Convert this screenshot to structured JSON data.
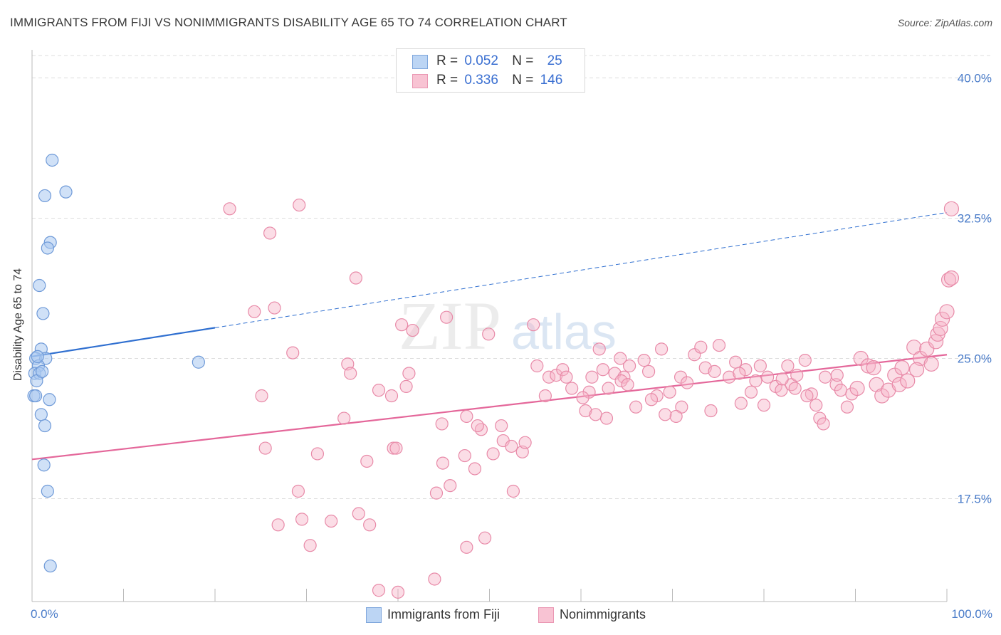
{
  "title": "IMMIGRANTS FROM FIJI VS NONIMMIGRANTS DISABILITY AGE 65 TO 74 CORRELATION CHART",
  "source": "Source: ZipAtlas.com",
  "watermark": {
    "zip": "ZIP",
    "atlas": "atlas"
  },
  "colors": {
    "blue_fill": "#a9c8f0",
    "blue_stroke": "#6f9ad8",
    "blue_line": "#2f6fd0",
    "pink_fill": "#f6b3c8",
    "pink_stroke": "#e88aa8",
    "pink_line": "#e4679a",
    "tick_text": "#4a7cc9",
    "grid": "#dddddd"
  },
  "legend": {
    "series1": {
      "r_label": "R =",
      "r_value": "0.052",
      "n_label": "N =",
      "n_value": "25"
    },
    "series2": {
      "r_label": "R =",
      "r_value": "0.336",
      "n_label": "N =",
      "n_value": "146"
    }
  },
  "bottom_legend": {
    "series1": "Immigrants from Fiji",
    "series2": "Nonimmigrants"
  },
  "chart_data": {
    "type": "scatter",
    "title": "IMMIGRANTS FROM FIJI VS NONIMMIGRANTS DISABILITY AGE 65 TO 74 CORRELATION CHART",
    "xlabel": "",
    "ylabel": "Disability Age 65 to 74",
    "xlim": [
      0,
      100
    ],
    "ylim": [
      12.0,
      41.5
    ],
    "x_tick_labels": [
      "0.0%",
      "100.0%"
    ],
    "y_ticks": [
      17.5,
      25.0,
      32.5,
      40.0
    ],
    "y_tick_labels": [
      "17.5%",
      "25.0%",
      "32.5%",
      "40.0%"
    ],
    "grid": true,
    "series": [
      {
        "name": "Immigrants from Fiji",
        "points": [
          [
            2.2,
            35.6
          ],
          [
            3.7,
            33.9
          ],
          [
            1.4,
            33.7
          ],
          [
            2.0,
            31.2
          ],
          [
            1.7,
            30.9
          ],
          [
            0.8,
            28.9
          ],
          [
            1.2,
            27.4
          ],
          [
            1.0,
            25.5
          ],
          [
            0.4,
            25.0
          ],
          [
            1.5,
            25.0
          ],
          [
            0.7,
            24.6
          ],
          [
            0.3,
            24.2
          ],
          [
            0.8,
            24.2
          ],
          [
            0.5,
            23.8
          ],
          [
            0.2,
            23.0
          ],
          [
            0.4,
            23.0
          ],
          [
            1.9,
            22.8
          ],
          [
            1.0,
            22.0
          ],
          [
            1.4,
            21.4
          ],
          [
            1.3,
            19.3
          ],
          [
            1.7,
            17.9
          ],
          [
            2.0,
            13.9
          ],
          [
            18.2,
            24.8
          ],
          [
            0.6,
            25.1
          ],
          [
            1.1,
            24.3
          ]
        ],
        "trend": {
          "x": [
            0,
            100
          ],
          "y": [
            25.1,
            32.8
          ],
          "solid_until_x": 20
        }
      },
      {
        "name": "Nonimmigrants",
        "points": [
          [
            29.2,
            33.2
          ],
          [
            21.6,
            33.0
          ],
          [
            26.0,
            31.7
          ],
          [
            35.4,
            29.3
          ],
          [
            26.5,
            27.7
          ],
          [
            24.3,
            27.5
          ],
          [
            45.3,
            27.2
          ],
          [
            40.4,
            26.8
          ],
          [
            54.8,
            26.8
          ],
          [
            41.6,
            26.5
          ],
          [
            49.9,
            26.3
          ],
          [
            28.5,
            25.3
          ],
          [
            34.5,
            24.7
          ],
          [
            34.8,
            24.2
          ],
          [
            41.2,
            24.2
          ],
          [
            37.9,
            23.3
          ],
          [
            40.9,
            23.5
          ],
          [
            25.1,
            23.0
          ],
          [
            39.3,
            23.0
          ],
          [
            47.5,
            21.9
          ],
          [
            34.1,
            21.8
          ],
          [
            44.8,
            21.5
          ],
          [
            49.1,
            21.2
          ],
          [
            48.7,
            21.4
          ],
          [
            51.3,
            21.4
          ],
          [
            25.5,
            20.2
          ],
          [
            39.5,
            20.2
          ],
          [
            39.8,
            20.2
          ],
          [
            31.2,
            19.9
          ],
          [
            50.4,
            19.9
          ],
          [
            51.5,
            20.6
          ],
          [
            52.4,
            20.3
          ],
          [
            53.6,
            20.0
          ],
          [
            53.9,
            20.5
          ],
          [
            36.6,
            19.5
          ],
          [
            44.9,
            19.4
          ],
          [
            47.3,
            19.8
          ],
          [
            48.4,
            19.1
          ],
          [
            29.1,
            17.9
          ],
          [
            44.2,
            17.8
          ],
          [
            45.7,
            18.2
          ],
          [
            52.6,
            17.9
          ],
          [
            35.7,
            16.7
          ],
          [
            26.9,
            16.1
          ],
          [
            29.5,
            16.4
          ],
          [
            32.7,
            16.3
          ],
          [
            36.9,
            16.1
          ],
          [
            30.4,
            15.0
          ],
          [
            47.5,
            14.9
          ],
          [
            49.5,
            15.4
          ],
          [
            44.0,
            13.2
          ],
          [
            37.9,
            12.6
          ],
          [
            40.0,
            12.5
          ],
          [
            60.5,
            22.2
          ],
          [
            56.5,
            24.0
          ],
          [
            55.2,
            24.6
          ],
          [
            57.3,
            24.1
          ],
          [
            58.0,
            24.4
          ],
          [
            56.1,
            23.0
          ],
          [
            59.0,
            23.4
          ],
          [
            60.9,
            23.2
          ],
          [
            61.2,
            24.0
          ],
          [
            62.0,
            25.5
          ],
          [
            62.4,
            24.4
          ],
          [
            63.0,
            23.4
          ],
          [
            63.7,
            24.2
          ],
          [
            64.7,
            24.0
          ],
          [
            64.4,
            23.8
          ],
          [
            65.3,
            24.6
          ],
          [
            66.9,
            24.9
          ],
          [
            67.4,
            24.3
          ],
          [
            68.3,
            23.0
          ],
          [
            68.8,
            25.5
          ],
          [
            69.7,
            23.2
          ],
          [
            70.9,
            24.0
          ],
          [
            71.6,
            23.7
          ],
          [
            72.4,
            25.2
          ],
          [
            73.1,
            25.6
          ],
          [
            73.6,
            24.5
          ],
          [
            74.6,
            24.3
          ],
          [
            75.1,
            25.7
          ],
          [
            76.2,
            24.0
          ],
          [
            76.9,
            24.8
          ],
          [
            77.5,
            22.6
          ],
          [
            78.0,
            24.4
          ],
          [
            78.6,
            23.2
          ],
          [
            80.4,
            24.0
          ],
          [
            80.0,
            22.5
          ],
          [
            81.3,
            23.5
          ],
          [
            81.9,
            23.3
          ],
          [
            82.6,
            24.6
          ],
          [
            83.0,
            23.6
          ],
          [
            83.6,
            24.1
          ],
          [
            84.5,
            24.9
          ],
          [
            85.2,
            23.1
          ],
          [
            85.7,
            22.5
          ],
          [
            86.7,
            24.0
          ],
          [
            87.9,
            23.6
          ],
          [
            88.4,
            23.3
          ],
          [
            89.1,
            22.4
          ],
          [
            89.6,
            23.1
          ],
          [
            90.6,
            25.0
          ],
          [
            91.4,
            24.6
          ],
          [
            92.3,
            23.6
          ],
          [
            92.9,
            23.0
          ],
          [
            93.6,
            23.3
          ],
          [
            94.3,
            24.1
          ],
          [
            94.8,
            23.6
          ],
          [
            95.1,
            24.5
          ],
          [
            96.4,
            25.6
          ],
          [
            97.1,
            25.0
          ],
          [
            97.8,
            25.5
          ],
          [
            98.3,
            24.7
          ],
          [
            98.8,
            25.9
          ],
          [
            99.0,
            26.3
          ],
          [
            95.7,
            23.8
          ],
          [
            96.7,
            24.4
          ],
          [
            92.0,
            24.5
          ],
          [
            90.2,
            23.4
          ],
          [
            88.0,
            24.1
          ],
          [
            86.1,
            21.8
          ],
          [
            86.5,
            21.5
          ],
          [
            84.7,
            23.0
          ],
          [
            83.4,
            23.4
          ],
          [
            82.0,
            23.9
          ],
          [
            79.6,
            24.6
          ],
          [
            79.1,
            23.8
          ],
          [
            77.3,
            24.2
          ],
          [
            74.2,
            22.2
          ],
          [
            71.0,
            22.4
          ],
          [
            70.4,
            21.9
          ],
          [
            69.2,
            22.0
          ],
          [
            67.7,
            22.8
          ],
          [
            66.0,
            22.4
          ],
          [
            65.1,
            23.6
          ],
          [
            64.3,
            25.0
          ],
          [
            62.8,
            21.8
          ],
          [
            61.6,
            22.0
          ],
          [
            58.4,
            24.0
          ],
          [
            60.2,
            22.9
          ],
          [
            99.3,
            26.6
          ],
          [
            99.5,
            27.1
          ],
          [
            100.0,
            27.5
          ],
          [
            100.2,
            29.2
          ],
          [
            100.5,
            29.3
          ],
          [
            101.0,
            33.0
          ]
        ],
        "trend": {
          "x": [
            0,
            100
          ],
          "y": [
            19.6,
            25.2
          ]
        }
      }
    ]
  }
}
